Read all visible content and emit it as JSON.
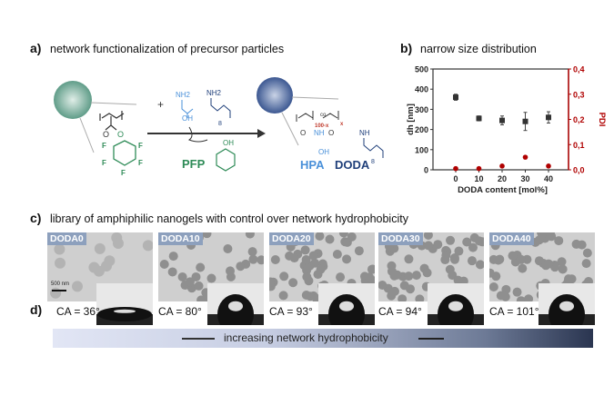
{
  "panel_a": {
    "label": "a)",
    "title": "network functionalization of precursor particles",
    "reagents": {
      "amine1": "NH2",
      "oh": "OH",
      "amine2": "NH2",
      "n8": "8"
    },
    "byproduct": "PFP",
    "byproduct_oh": "OH",
    "fluorine": "F",
    "oxygen": "O",
    "product": {
      "co": "co",
      "index1": "100-x",
      "index2": "x",
      "nh": "NH",
      "oh": "OH",
      "n8": "8",
      "hpa": "HPA",
      "doda": "DODA"
    },
    "colors": {
      "precursor": "#2e8b57",
      "hpa": "#4a90d9",
      "doda": "#1f3f7a",
      "index": "#c0392b"
    }
  },
  "panel_b": {
    "label": "b)",
    "title": "narrow size distribution"
  },
  "chart_data": {
    "type": "scatter",
    "xlabel": "DODA content [mol%]",
    "ylabel": "dh [nm]",
    "y2label": "PDI",
    "x": [
      0,
      10,
      20,
      30,
      40
    ],
    "xticks": [
      "0",
      "10",
      "20",
      "30",
      "40"
    ],
    "ylim": [
      0,
      500
    ],
    "yticks": [
      "0",
      "100",
      "200",
      "300",
      "400",
      "500"
    ],
    "y2lim": [
      0,
      0.4
    ],
    "y2ticks": [
      "0,0",
      "0,1",
      "0,2",
      "0,3",
      "0,4"
    ],
    "series": [
      {
        "axis": "left",
        "marker": "square",
        "color": "#333333",
        "values": [
          360,
          255,
          245,
          240,
          260
        ],
        "errors": [
          15,
          12,
          22,
          45,
          28
        ]
      },
      {
        "axis": "right",
        "marker": "circle",
        "color": "#b00000",
        "values": [
          0.005,
          0.005,
          0.015,
          0.05,
          0.015
        ]
      }
    ],
    "grid": false
  },
  "panel_c": {
    "label": "c)",
    "title": "library of amphiphilic nanogels with control over network hydrophobicity",
    "images": [
      {
        "tag": "DODA0"
      },
      {
        "tag": "DODA10"
      },
      {
        "tag": "DODA20"
      },
      {
        "tag": "DODA30"
      },
      {
        "tag": "DODA40"
      }
    ],
    "scalebar": "500 nm"
  },
  "panel_d": {
    "label": "d)",
    "contact_angles": [
      "CA = 36°",
      "CA = 80°",
      "CA = 93°",
      "CA = 94°",
      "CA = 101°"
    ]
  },
  "gradient": {
    "text": "increasing network hydrophobicity"
  }
}
